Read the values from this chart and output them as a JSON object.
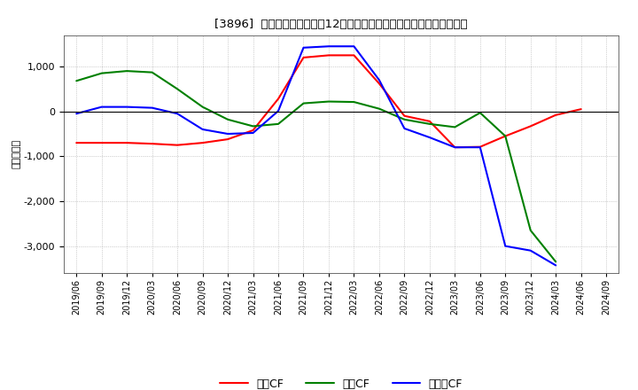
{
  "title": "[3896]  キャッシュフローの12か月移動合計の対前年同期増減額の推移",
  "ylabel": "（百万円）",
  "background_color": "#ffffff",
  "plot_bg_color": "#ffffff",
  "grid_color": "#aaaaaa",
  "x_labels": [
    "2019/06",
    "2019/09",
    "2019/12",
    "2020/03",
    "2020/06",
    "2020/09",
    "2020/12",
    "2021/03",
    "2021/06",
    "2021/09",
    "2021/12",
    "2022/03",
    "2022/06",
    "2022/09",
    "2022/12",
    "2023/03",
    "2023/06",
    "2023/09",
    "2023/12",
    "2024/03",
    "2024/06",
    "2024/09"
  ],
  "operating_cf": [
    -700,
    -700,
    -700,
    -720,
    -750,
    -700,
    -620,
    -420,
    280,
    1200,
    1250,
    1250,
    620,
    -100,
    -220,
    -800,
    -790,
    -550,
    -330,
    -80,
    50,
    null
  ],
  "investing_cf": [
    680,
    850,
    900,
    870,
    500,
    100,
    -180,
    -330,
    -280,
    180,
    220,
    210,
    60,
    -180,
    -280,
    -350,
    -30,
    -550,
    -2650,
    -3350,
    null,
    null
  ],
  "free_cf": [
    -50,
    100,
    100,
    80,
    -50,
    -400,
    -500,
    -480,
    10,
    1420,
    1450,
    1450,
    700,
    -380,
    -580,
    -800,
    -800,
    -3000,
    -3100,
    -3430,
    null,
    null
  ],
  "operating_color": "#ff0000",
  "investing_color": "#008000",
  "free_color": "#0000ff",
  "legend_labels": [
    "営業CF",
    "投資CF",
    "フリーCF"
  ],
  "ylim": [
    -3600,
    1700
  ],
  "yticks": [
    -3000,
    -2000,
    -1000,
    0,
    1000
  ],
  "line_width": 1.5
}
